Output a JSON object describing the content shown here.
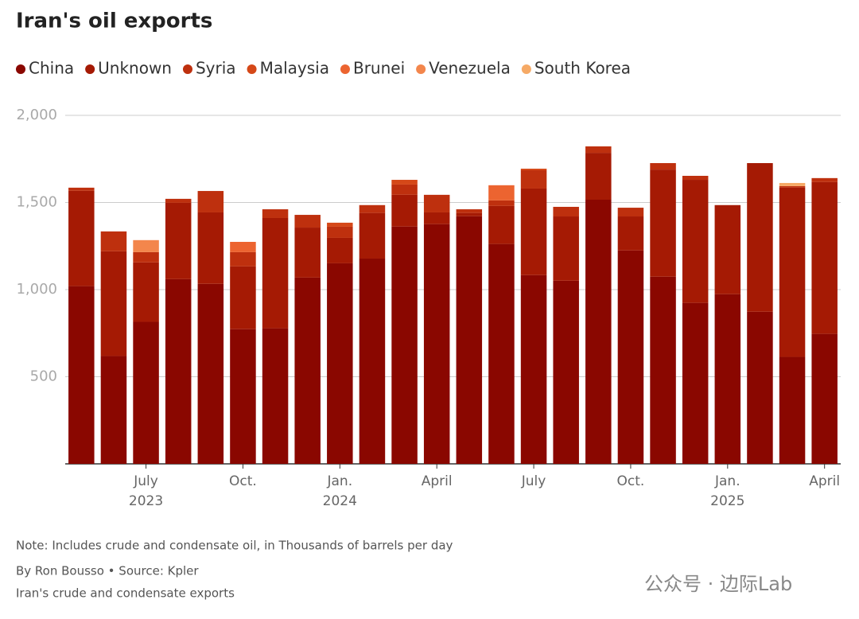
{
  "chart_data": {
    "type": "stacked_bar",
    "title": "Iran's oil exports",
    "categories": [
      null,
      null,
      "July",
      null,
      null,
      "Oct.",
      null,
      null,
      "Jan.",
      null,
      null,
      "April",
      null,
      null,
      "July",
      null,
      null,
      "Oct.",
      null,
      null,
      "Jan.",
      null,
      null,
      "April"
    ],
    "year_labels": [
      null,
      null,
      "2023",
      null,
      null,
      null,
      null,
      null,
      "2024",
      null,
      null,
      null,
      null,
      null,
      null,
      null,
      null,
      null,
      null,
      null,
      "2025",
      null,
      null,
      null
    ],
    "series": [
      {
        "name": "China",
        "color": "#8a0700",
        "values": [
          1020,
          619,
          815,
          1060,
          1033,
          773,
          778,
          1069,
          1151,
          1178,
          1362,
          1376,
          1421,
          1262,
          1083,
          1051,
          1516,
          1225,
          1074,
          924,
          974,
          873,
          614,
          746
        ]
      },
      {
        "name": "Unknown",
        "color": "#a51a04",
        "values": [
          547,
          601,
          341,
          438,
          410,
          360,
          633,
          287,
          146,
          262,
          182,
          67,
          19,
          218,
          497,
          369,
          269,
          195,
          615,
          706,
          511,
          853,
          971,
          871
        ]
      },
      {
        "name": "Syria",
        "color": "#be300e",
        "values": [
          18,
          114,
          59,
          23,
          123,
          82,
          50,
          73,
          64,
          45,
          59,
          101,
          21,
          32,
          105,
          55,
          37,
          50,
          37,
          23,
          0,
          0,
          9,
          23
        ]
      },
      {
        "name": "Malaysia",
        "color": "#d54818",
        "values": [
          0,
          0,
          0,
          0,
          0,
          0,
          0,
          0,
          23,
          0,
          27,
          0,
          0,
          0,
          9,
          0,
          0,
          0,
          0,
          0,
          0,
          0,
          0,
          0
        ]
      },
      {
        "name": "Brunei",
        "color": "#ec6430",
        "values": [
          0,
          0,
          0,
          0,
          0,
          59,
          0,
          0,
          0,
          0,
          0,
          0,
          0,
          87,
          0,
          0,
          0,
          0,
          0,
          0,
          0,
          0,
          0,
          0
        ]
      },
      {
        "name": "Venezuela",
        "color": "#f3864c",
        "values": [
          0,
          0,
          69,
          0,
          0,
          0,
          0,
          0,
          0,
          0,
          0,
          0,
          0,
          0,
          0,
          0,
          0,
          0,
          0,
          0,
          0,
          0,
          0,
          0
        ]
      },
      {
        "name": "South Korea",
        "color": "#f6aa66",
        "values": [
          0,
          0,
          0,
          0,
          0,
          0,
          0,
          0,
          0,
          0,
          0,
          0,
          0,
          0,
          0,
          0,
          0,
          0,
          0,
          0,
          0,
          0,
          18,
          0
        ]
      }
    ],
    "ylim": [
      0,
      2000
    ],
    "yticks": [
      {
        "value": 500,
        "label": "500"
      },
      {
        "value": 1000,
        "label": "1,000"
      },
      {
        "value": 1500,
        "label": "1,500"
      },
      {
        "value": 2000,
        "label": "2,000"
      }
    ],
    "grid": true,
    "note": "Note: Includes crude and condensate oil, in Thousands of barrels per day",
    "byline": "By Ron Bousso • Source: Kpler",
    "caption": "Iran's crude and condensate exports",
    "watermark": "公众号 · 边际Lab"
  }
}
